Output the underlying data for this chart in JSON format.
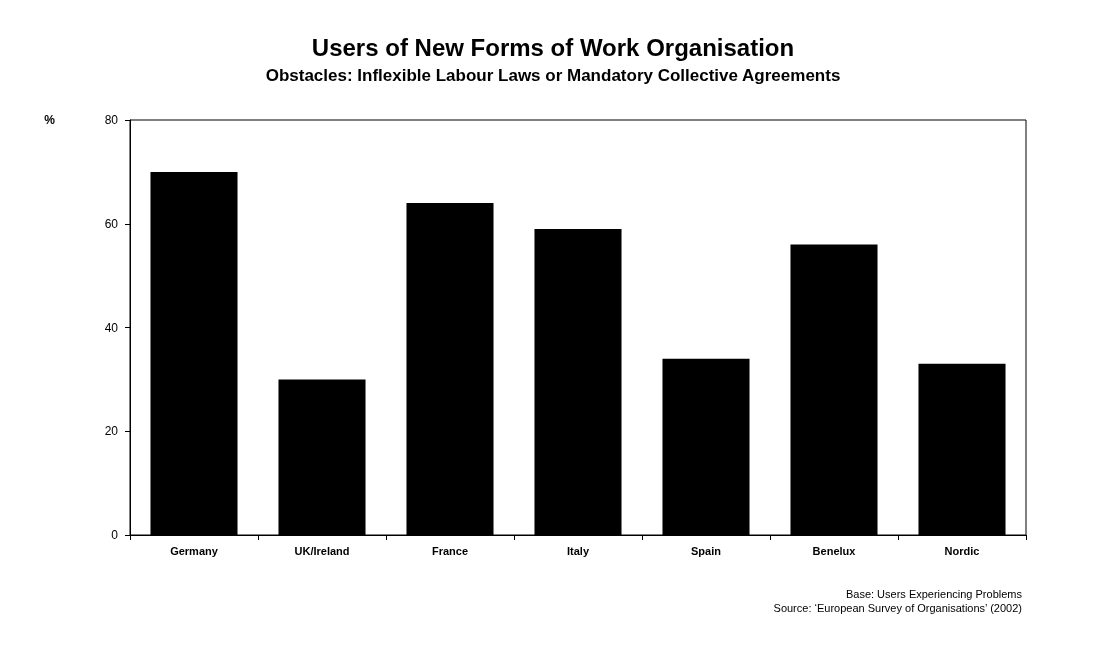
{
  "chart_data": {
    "type": "bar",
    "title": "Users of New Forms of Work Organisation",
    "subtitle": "Obstacles: Inflexible Labour Laws or Mandatory Collective Agreements",
    "ylabel": "%",
    "categories": [
      "Germany",
      "UK/Ireland",
      "France",
      "Italy",
      "Spain",
      "Benelux",
      "Nordic"
    ],
    "values": [
      70,
      30,
      64,
      59,
      34,
      56,
      33
    ],
    "color": "#000000",
    "ylim": [
      0,
      80
    ],
    "yticks": [
      0,
      20,
      40,
      60,
      80
    ],
    "grid": false,
    "annotations": [
      "Base: Users Experiencing Problems",
      "Source: ‘European Survey of Organisations’ (2002)"
    ]
  }
}
